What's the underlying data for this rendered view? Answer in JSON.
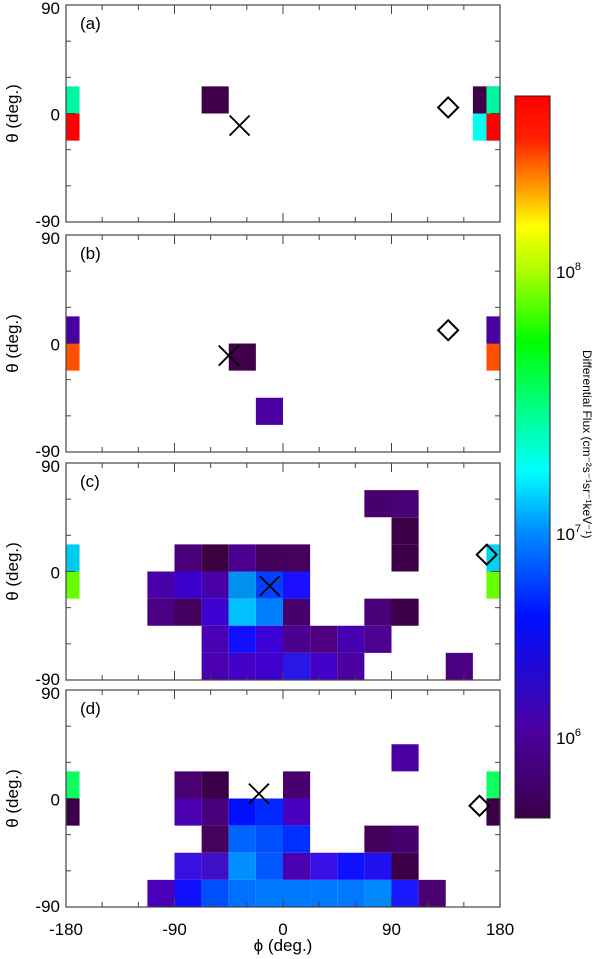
{
  "chart_data": {
    "type": "heatmap",
    "title": "",
    "xlabel": "ϕ (deg.)",
    "ylabel": "θ (deg.)",
    "xlim": [
      -180,
      180
    ],
    "ylim": [
      -90,
      90
    ],
    "xticks": [
      -180,
      -90,
      0,
      90,
      180
    ],
    "yticks": [
      -90,
      0,
      90
    ],
    "bin_size_deg": 22.5,
    "colorbar": {
      "label": "Differential Flux (cm⁻²s⁻¹sr⁻¹keV⁻¹)",
      "scale": "log",
      "ticks": [
        "10⁶",
        "10⁷",
        "10⁸"
      ],
      "colormap": "rainbow (dark purple → blue → cyan → green → yellow → red)"
    },
    "panels": [
      {
        "label": "(a)",
        "x_marker": {
          "phi": -36,
          "theta": -10
        },
        "diamond_marker": {
          "phi": 137,
          "theta": 5
        },
        "cells": [
          {
            "phi": -180,
            "theta": 11.25,
            "color": "#00f5a0"
          },
          {
            "phi": -180,
            "theta": -11.25,
            "color": "#ff0000"
          },
          {
            "phi": -56.25,
            "theta": 11.25,
            "color": "#40004a"
          },
          {
            "phi": 168.75,
            "theta": 11.25,
            "color": "#40004a"
          },
          {
            "phi": 180,
            "theta": 11.25,
            "color": "#00f5a0"
          },
          {
            "phi": 168.75,
            "theta": -11.25,
            "color": "#00ffee"
          },
          {
            "phi": 180,
            "theta": -11.25,
            "color": "#ff0000"
          }
        ]
      },
      {
        "label": "(b)",
        "x_marker": {
          "phi": -45,
          "theta": -10
        },
        "diamond_marker": {
          "phi": 137,
          "theta": 11
        },
        "cells": [
          {
            "phi": -180,
            "theta": 11.25,
            "color": "#4a00a0"
          },
          {
            "phi": -180,
            "theta": -11.25,
            "color": "#ff5000"
          },
          {
            "phi": -33.75,
            "theta": -11.25,
            "color": "#40004a"
          },
          {
            "phi": -11.25,
            "theta": -56.25,
            "color": "#4a00a0"
          },
          {
            "phi": 180,
            "theta": 11.25,
            "color": "#4a00a0"
          },
          {
            "phi": 180,
            "theta": -11.25,
            "color": "#ff5000"
          }
        ]
      },
      {
        "label": "(c)",
        "x_marker": {
          "phi": -11,
          "theta": -12
        },
        "diamond_marker": {
          "phi": 169,
          "theta": 14
        },
        "cells": [
          {
            "phi": -180,
            "theta": 11.25,
            "color": "#00ccf0"
          },
          {
            "phi": -180,
            "theta": -11.25,
            "color": "#66ff00"
          },
          {
            "phi": 78.75,
            "theta": 56.25,
            "color": "#48006e"
          },
          {
            "phi": 101.25,
            "theta": 56.25,
            "color": "#4a0075"
          },
          {
            "phi": 101.25,
            "theta": 33.75,
            "color": "#3c0048"
          },
          {
            "phi": -78.75,
            "theta": 11.25,
            "color": "#4a0078"
          },
          {
            "phi": -56.25,
            "theta": 11.25,
            "color": "#3a0040"
          },
          {
            "phi": -33.75,
            "theta": 11.25,
            "color": "#4c0090"
          },
          {
            "phi": -11.25,
            "theta": 11.25,
            "color": "#44005a"
          },
          {
            "phi": 11.25,
            "theta": 11.25,
            "color": "#46005e"
          },
          {
            "phi": 101.25,
            "theta": 11.25,
            "color": "#3c0048"
          },
          {
            "phi": -101.25,
            "theta": -11.25,
            "color": "#4a00a8"
          },
          {
            "phi": -78.75,
            "theta": -11.25,
            "color": "#3c00cc"
          },
          {
            "phi": -56.25,
            "theta": -11.25,
            "color": "#4a00a8"
          },
          {
            "phi": -33.75,
            "theta": -11.25,
            "color": "#0090f0"
          },
          {
            "phi": -11.25,
            "theta": -11.25,
            "color": "#0040ff"
          },
          {
            "phi": 11.25,
            "theta": -11.25,
            "color": "#1a10ff"
          },
          {
            "phi": -101.25,
            "theta": -33.75,
            "color": "#4a0080"
          },
          {
            "phi": -78.75,
            "theta": -33.75,
            "color": "#44005e"
          },
          {
            "phi": -56.25,
            "theta": -33.75,
            "color": "#3c00d0"
          },
          {
            "phi": -33.75,
            "theta": -33.75,
            "color": "#00c0ff"
          },
          {
            "phi": -11.25,
            "theta": -33.75,
            "color": "#0080ff"
          },
          {
            "phi": 11.25,
            "theta": -33.75,
            "color": "#48006e"
          },
          {
            "phi": 78.75,
            "theta": -33.75,
            "color": "#4a0078"
          },
          {
            "phi": 101.25,
            "theta": -33.75,
            "color": "#3c0048"
          },
          {
            "phi": -56.25,
            "theta": -56.25,
            "color": "#4a00b4"
          },
          {
            "phi": -33.75,
            "theta": -56.25,
            "color": "#1010ff"
          },
          {
            "phi": -11.25,
            "theta": -56.25,
            "color": "#3a00d4"
          },
          {
            "phi": 11.25,
            "theta": -56.25,
            "color": "#4c0090"
          },
          {
            "phi": 33.75,
            "theta": -56.25,
            "color": "#4e0080"
          },
          {
            "phi": 56.25,
            "theta": -56.25,
            "color": "#4600b0"
          },
          {
            "phi": 78.75,
            "theta": -56.25,
            "color": "#4e0090"
          },
          {
            "phi": -56.25,
            "theta": -78.75,
            "color": "#4a00b0"
          },
          {
            "phi": -33.75,
            "theta": -78.75,
            "color": "#4400c4"
          },
          {
            "phi": -11.25,
            "theta": -78.75,
            "color": "#4000cc"
          },
          {
            "phi": 11.25,
            "theta": -78.75,
            "color": "#2818e8"
          },
          {
            "phi": 33.75,
            "theta": -78.75,
            "color": "#4200c8"
          },
          {
            "phi": 56.25,
            "theta": -78.75,
            "color": "#4c00a0"
          },
          {
            "phi": 146.25,
            "theta": -78.75,
            "color": "#4a0080"
          },
          {
            "phi": 180,
            "theta": 11.25,
            "color": "#00d4f0"
          },
          {
            "phi": 180,
            "theta": -11.25,
            "color": "#66ff00"
          }
        ]
      },
      {
        "label": "(d)",
        "x_marker": {
          "phi": -20,
          "theta": 4
        },
        "diamond_marker": {
          "phi": 163,
          "theta": -6
        },
        "cells": [
          {
            "phi": -180,
            "theta": 11.25,
            "color": "#10ff60"
          },
          {
            "phi": -180,
            "theta": -11.25,
            "color": "#3c0048"
          },
          {
            "phi": 101.25,
            "theta": 33.75,
            "color": "#4a00a0"
          },
          {
            "phi": -78.75,
            "theta": 11.25,
            "color": "#4a006e"
          },
          {
            "phi": -56.25,
            "theta": 11.25,
            "color": "#3a0048"
          },
          {
            "phi": 11.25,
            "theta": 11.25,
            "color": "#48006e"
          },
          {
            "phi": -78.75,
            "theta": -11.25,
            "color": "#4a00b0"
          },
          {
            "phi": -56.25,
            "theta": -11.25,
            "color": "#48007a"
          },
          {
            "phi": -33.75,
            "theta": -11.25,
            "color": "#0010ff"
          },
          {
            "phi": -11.25,
            "theta": -11.25,
            "color": "#0028ff"
          },
          {
            "phi": 11.25,
            "theta": -11.25,
            "color": "#4a00c0"
          },
          {
            "phi": -56.25,
            "theta": -33.75,
            "color": "#46005e"
          },
          {
            "phi": -33.75,
            "theta": -33.75,
            "color": "#0064ff"
          },
          {
            "phi": -11.25,
            "theta": -33.75,
            "color": "#0050ff"
          },
          {
            "phi": 11.25,
            "theta": -33.75,
            "color": "#0030ff"
          },
          {
            "phi": 78.75,
            "theta": -33.75,
            "color": "#44005a"
          },
          {
            "phi": 101.25,
            "theta": -33.75,
            "color": "#48006e"
          },
          {
            "phi": -78.75,
            "theta": -56.25,
            "color": "#3a10e0"
          },
          {
            "phi": -56.25,
            "theta": -56.25,
            "color": "#4010c8"
          },
          {
            "phi": -33.75,
            "theta": -56.25,
            "color": "#0090ff"
          },
          {
            "phi": -11.25,
            "theta": -56.25,
            "color": "#0058ff"
          },
          {
            "phi": 11.25,
            "theta": -56.25,
            "color": "#4a00b0"
          },
          {
            "phi": 33.75,
            "theta": -56.25,
            "color": "#3a10e8"
          },
          {
            "phi": 56.25,
            "theta": -56.25,
            "color": "#1010ff"
          },
          {
            "phi": 78.75,
            "theta": -56.25,
            "color": "#2010f0"
          },
          {
            "phi": 101.25,
            "theta": -56.25,
            "color": "#3c0048"
          },
          {
            "phi": -101.25,
            "theta": -78.75,
            "color": "#4a00b8"
          },
          {
            "phi": -78.75,
            "theta": -78.75,
            "color": "#1010ff"
          },
          {
            "phi": -56.25,
            "theta": -78.75,
            "color": "#0050ff"
          },
          {
            "phi": -33.75,
            "theta": -78.75,
            "color": "#0070ff"
          },
          {
            "phi": -11.25,
            "theta": -78.75,
            "color": "#0078ff"
          },
          {
            "phi": 11.25,
            "theta": -78.75,
            "color": "#0078ff"
          },
          {
            "phi": 33.75,
            "theta": -78.75,
            "color": "#0078ff"
          },
          {
            "phi": 56.25,
            "theta": -78.75,
            "color": "#0078ff"
          },
          {
            "phi": 78.75,
            "theta": -78.75,
            "color": "#0088ff"
          },
          {
            "phi": 101.25,
            "theta": -78.75,
            "color": "#1a18ff"
          },
          {
            "phi": 123.75,
            "theta": -78.75,
            "color": "#4a0070"
          },
          {
            "phi": 180,
            "theta": 11.25,
            "color": "#10ff60"
          },
          {
            "phi": 180,
            "theta": -11.25,
            "color": "#3c0048"
          }
        ]
      }
    ]
  },
  "labels": {
    "xlabel": "ϕ (deg.)",
    "ylabel": "θ (deg.)",
    "colorbar_label": "Differential Flux (cm⁻²s⁻¹sr⁻¹keV⁻¹)"
  }
}
